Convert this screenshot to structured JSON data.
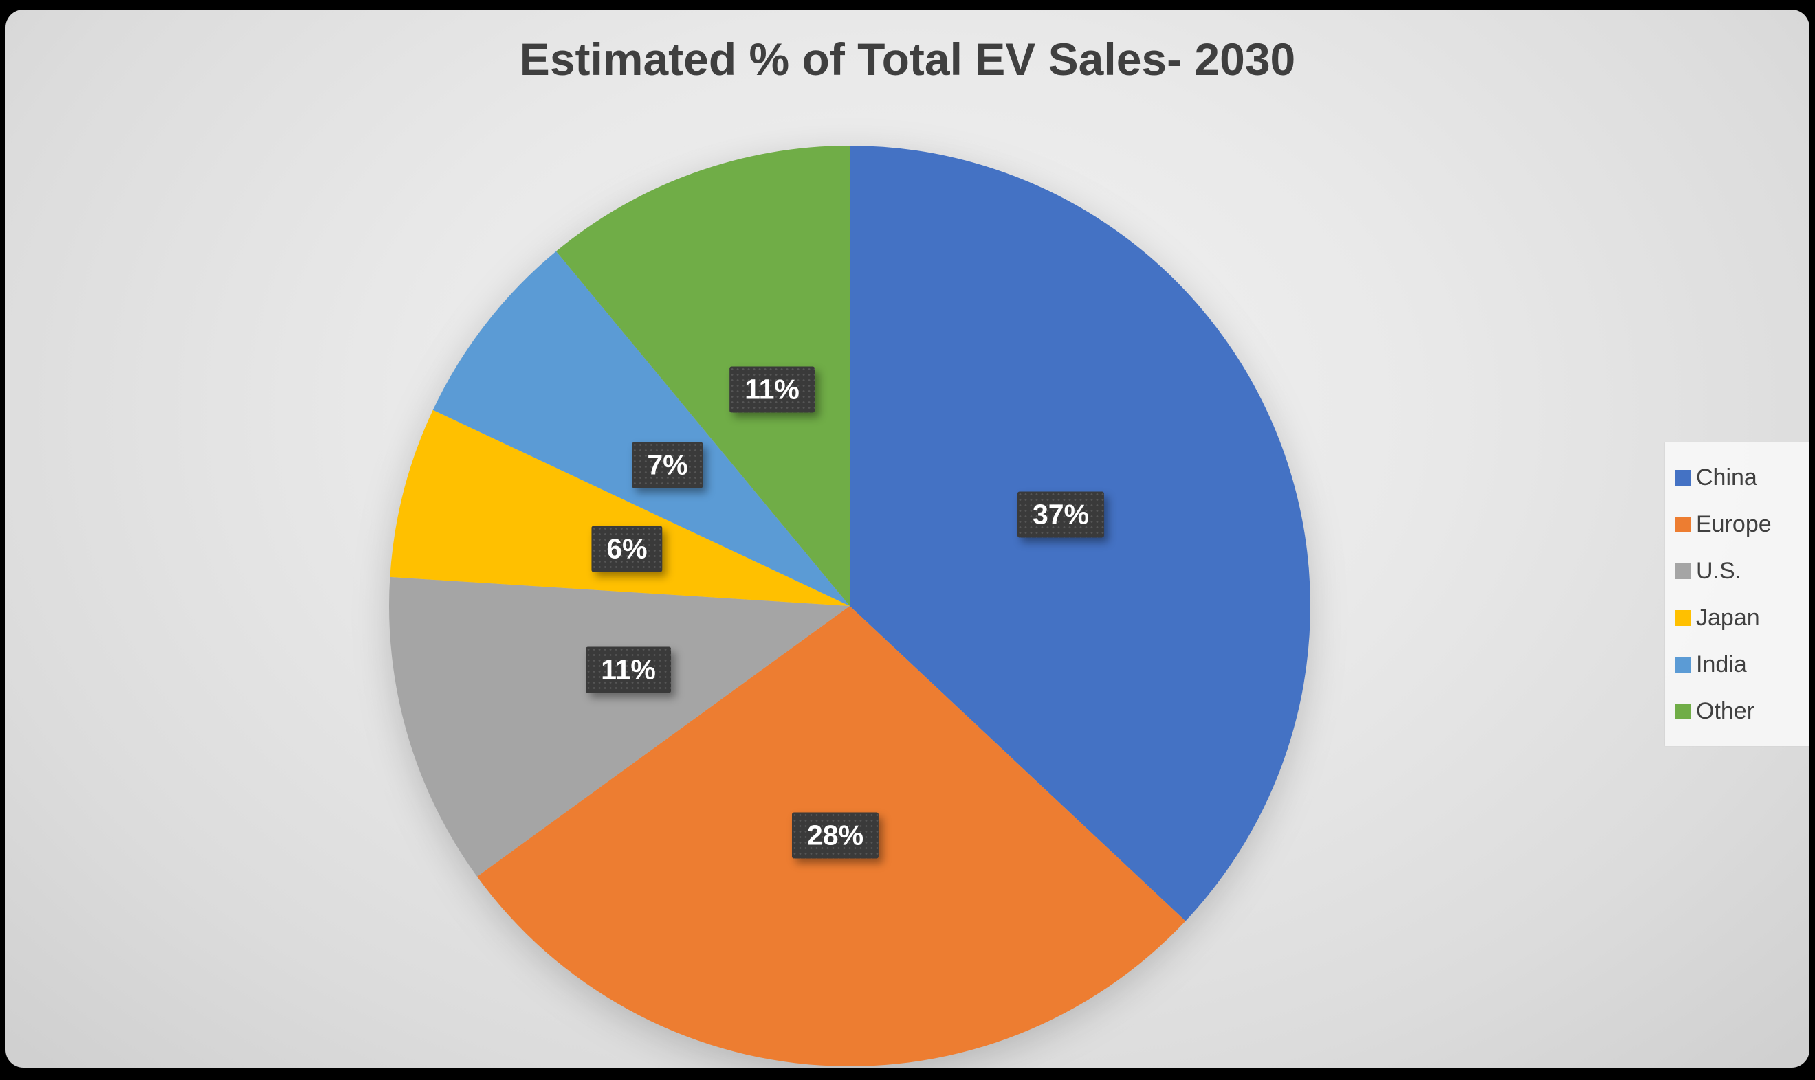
{
  "chart_data": {
    "type": "pie",
    "title": "Estimated % of Total EV Sales- 2030",
    "categories": [
      "China",
      "Europe",
      "U.S.",
      "Japan",
      "India",
      "Other"
    ],
    "values": [
      37,
      28,
      11,
      6,
      7,
      11
    ],
    "labels": [
      "37%",
      "28%",
      "11%",
      "6%",
      "7%",
      "11%"
    ],
    "colors": [
      "#4472C4",
      "#ED7D31",
      "#A5A5A5",
      "#FFC000",
      "#5B9BD5",
      "#70AD47"
    ],
    "legend_position": "right",
    "start_angle_deg": 0,
    "direction": "clockwise"
  },
  "style": {
    "title_color": "#3f3f3f",
    "label_bg": "#3a3a3a",
    "label_text_color": "#ffffff",
    "background_light": "#f2f2f2",
    "background_dark": "#cfcfcf",
    "frame_color": "#000000"
  }
}
